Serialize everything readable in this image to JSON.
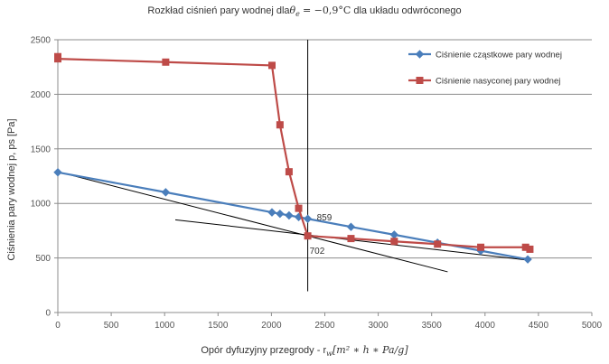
{
  "chart_data": {
    "type": "scatter",
    "title_text": "Rozkład ciśnień pary wodnej  dla",
    "title_theta": "θ",
    "title_theta_sub": "e",
    "title_value": "= −0,9°C",
    "title_suffix": " dla układu odwróconego",
    "ylabel": "Ciśnienia pary wodnej p, ps [Pa]",
    "xlabel_text": "Opór dyfuzyjny przegrody - r",
    "xlabel_r_sub": "w",
    "xlabel_units": "[m² ∗ h ∗ Pa/g]",
    "xlim": [
      0,
      5000
    ],
    "ylim": [
      0,
      2500
    ],
    "x_ticks": [
      0,
      500,
      1000,
      1500,
      2000,
      2500,
      3000,
      3500,
      4000,
      4500,
      5000
    ],
    "y_ticks": [
      0,
      500,
      1000,
      1500,
      2000,
      2500
    ],
    "grid": true,
    "legend_position": "top-right",
    "series": [
      {
        "name": "Ciśnienie cząstkowe pary wodnej",
        "color": "#4a7ebb",
        "marker": "diamond",
        "points": [
          [
            0,
            1285
          ],
          [
            1010,
            1102
          ],
          [
            2005,
            918
          ],
          [
            2080,
            905
          ],
          [
            2165,
            890
          ],
          [
            2255,
            875
          ],
          [
            2340,
            859
          ],
          [
            2745,
            785
          ],
          [
            3150,
            713
          ],
          [
            3555,
            640
          ],
          [
            3960,
            566
          ],
          [
            4400,
            487
          ]
        ]
      },
      {
        "name": "Ciśnienie nasyconej pary wodnej",
        "color": "#be4b48",
        "marker": "square",
        "points": [
          [
            0,
            2345
          ],
          [
            0,
            2325
          ],
          [
            1010,
            2295
          ],
          [
            2005,
            2265
          ],
          [
            2080,
            1720
          ],
          [
            2165,
            1290
          ],
          [
            2255,
            955
          ],
          [
            2340,
            702
          ],
          [
            2745,
            678
          ],
          [
            3150,
            652
          ],
          [
            3555,
            627
          ],
          [
            3960,
            598
          ],
          [
            4380,
            598
          ],
          [
            4420,
            580
          ]
        ]
      }
    ],
    "auxiliary_lines": [
      {
        "points": [
          [
            0,
            1290
          ],
          [
            3650,
            373
          ]
        ],
        "color": "#000000"
      },
      {
        "points": [
          [
            1100,
            850
          ],
          [
            4400,
            480
          ]
        ],
        "color": "#000000"
      },
      {
        "points": [
          [
            2340,
            2500
          ],
          [
            2340,
            195
          ]
        ],
        "color": "#000000"
      }
    ],
    "annotations": [
      {
        "text": "859",
        "x": 2340,
        "y": 859
      },
      {
        "text": "702",
        "x": 2340,
        "y": 702
      }
    ]
  }
}
